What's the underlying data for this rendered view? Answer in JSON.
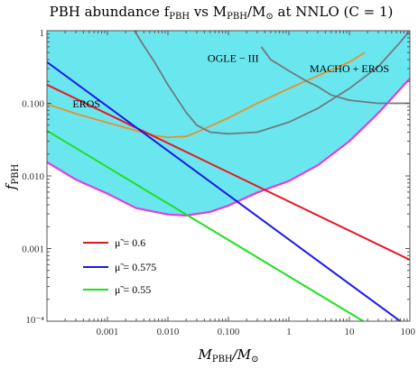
{
  "chart_data": {
    "type": "line",
    "title_parts": {
      "a": "PBH abundance f",
      "a_sub": "PBH",
      "b": " vs M",
      "b_sub": "PBH",
      "c": "/M",
      "c_sub": "⊙",
      "d": " at NNLO (C = 1)"
    },
    "xlabel_parts": {
      "main": "M",
      "sub": "PBH",
      "rest": "/M",
      "rest_sub": "⊙"
    },
    "ylabel_parts": {
      "main": "f",
      "sub": "PBH"
    },
    "x_scale": "log",
    "y_scale": "log",
    "xlim": [
      0.0001,
      100
    ],
    "ylim": [
      0.0001,
      1
    ],
    "x_ticks": [
      {
        "value": 0.001,
        "label": "0.001"
      },
      {
        "value": 0.01,
        "label": "0.010"
      },
      {
        "value": 0.1,
        "label": "0.100"
      },
      {
        "value": 1,
        "label": "1"
      },
      {
        "value": 10,
        "label": "10"
      },
      {
        "value": 100,
        "label": "100"
      }
    ],
    "y_ticks": [
      {
        "value": 0.0001,
        "label": "10⁻⁴"
      },
      {
        "value": 0.001,
        "label": "0.001"
      },
      {
        "value": 0.01,
        "label": "0.010"
      },
      {
        "value": 0.1,
        "label": "0.100"
      },
      {
        "value": 1,
        "label": "1"
      }
    ],
    "grid": false,
    "colors": {
      "fill": "#6ae6ef",
      "bound": "#e23cdd",
      "eros": "#eb8f27",
      "ogle": "#707a7e",
      "macho": "#707a7e",
      "mu_06": "#e8161f",
      "mu_0575": "#1a1ae6",
      "mu_055": "#20e020"
    },
    "excluded_region_boundary": {
      "x": [
        0.0001,
        0.0003,
        0.001,
        0.003,
        0.01,
        0.02,
        0.05,
        0.1,
        0.3,
        1,
        3,
        10,
        30,
        100
      ],
      "y": [
        0.0155,
        0.0089,
        0.0057,
        0.0036,
        0.00295,
        0.00285,
        0.0032,
        0.0039,
        0.0059,
        0.0085,
        0.014,
        0.03,
        0.073,
        0.22
      ]
    },
    "constraints": [
      {
        "name": "EROS",
        "x": [
          0.0001,
          0.0003,
          0.001,
          0.003,
          0.006,
          0.01,
          0.02,
          0.03,
          0.1,
          0.3,
          1,
          3,
          10,
          18
        ],
        "y": [
          0.098,
          0.072,
          0.054,
          0.042,
          0.036,
          0.034,
          0.035,
          0.04,
          0.063,
          0.1,
          0.16,
          0.24,
          0.37,
          0.5
        ]
      },
      {
        "name": "OGLE − III",
        "x": [
          0.0028,
          0.004,
          0.006,
          0.01,
          0.02,
          0.03,
          0.05,
          0.1,
          0.3,
          1,
          3,
          10,
          30,
          70,
          100
        ],
        "y": [
          1,
          0.62,
          0.37,
          0.18,
          0.075,
          0.05,
          0.04,
          0.038,
          0.04,
          0.055,
          0.085,
          0.16,
          0.32,
          0.7,
          1
        ]
      },
      {
        "name": "MACHO + EROS",
        "x": [
          0.35,
          0.5,
          1,
          2,
          3,
          5,
          10,
          30,
          100
        ],
        "y": [
          0.6,
          0.4,
          0.28,
          0.2,
          0.17,
          0.13,
          0.11,
          0.1,
          0.1
        ]
      }
    ],
    "annotations": [
      {
        "label": "EROS",
        "x": 0.00045,
        "y": 0.098
      },
      {
        "label": "OGLE − III",
        "x": 0.12,
        "y": 0.42
      },
      {
        "label": "MACHO + EROS",
        "x": 10,
        "y": 0.3
      }
    ],
    "series": [
      {
        "name": "μ̃ = 0.6",
        "color_key": "mu_06",
        "x": [
          0.0001,
          100
        ],
        "y": [
          0.18,
          0.0007
        ]
      },
      {
        "name": "μ̃ = 0.575",
        "color_key": "mu_0575",
        "x": [
          0.0001,
          100
        ],
        "y": [
          0.37,
          8e-05
        ]
      },
      {
        "name": "μ̃ = 0.55",
        "color_key": "mu_055",
        "x": [
          0.0001,
          17
        ],
        "y": [
          0.042,
          0.0001
        ]
      }
    ],
    "legend_position": "bottom-left"
  }
}
